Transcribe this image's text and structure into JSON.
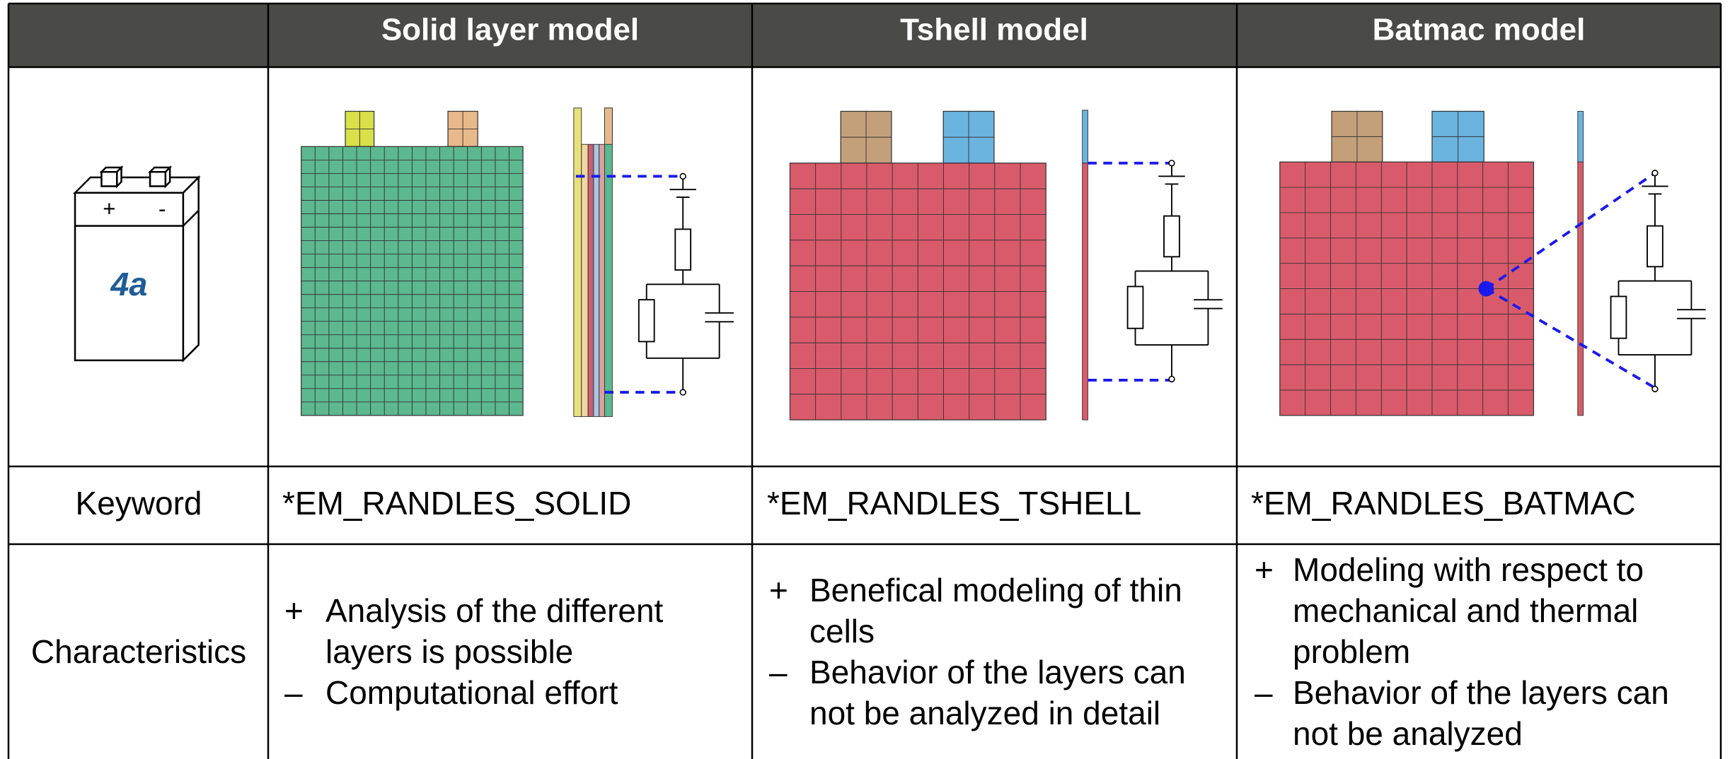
{
  "header": {
    "columns": [
      "Solid layer model",
      "Tshell model",
      "Batmac model"
    ]
  },
  "icon": {
    "plus": "+",
    "minus": "-",
    "logo": "4a"
  },
  "rows": [
    {
      "label": "Keyword",
      "cells": [
        "*EM_RANDLES_SOLID",
        "*EM_RANDLES_TSHELL",
        "*EM_RANDLES_BATMAC"
      ]
    },
    {
      "label": "Characteristics",
      "cells": [
        [
          {
            "marker": "+",
            "lines": [
              "Analysis of the different",
              "layers is possible"
            ]
          },
          {
            "marker": "–",
            "lines": [
              "Computational effort"
            ]
          }
        ],
        [
          {
            "marker": "+",
            "lines": [
              "Benefical modeling of thin",
              "cells"
            ]
          },
          {
            "marker": "–",
            "lines": [
              "Behavior of the layers can",
              "not be analyzed in detail"
            ]
          }
        ],
        [
          {
            "marker": "+",
            "lines": [
              "Modeling with respect to",
              "mechanical and thermal",
              "problem"
            ]
          },
          {
            "marker": "–",
            "lines": [
              "Behavior of the layers can",
              "not be analyzed"
            ]
          }
        ]
      ]
    }
  ]
}
